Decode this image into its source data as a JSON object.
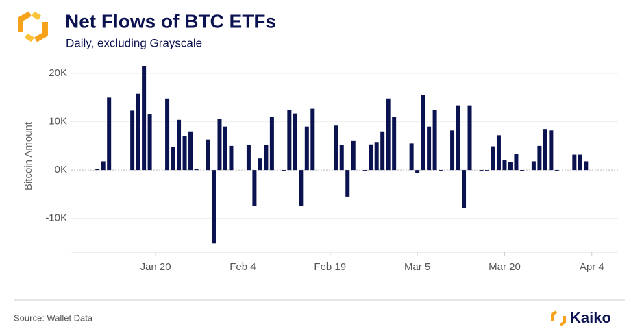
{
  "chart_data": {
    "type": "bar",
    "title": "Net Flows of BTC ETFs",
    "subtitle": "Daily, excluding Grayscale",
    "y_label": "Bitcoin Amount",
    "source": "Source: Wallet Data",
    "brand": "Kaiko",
    "categories": [
      null,
      null,
      null,
      null,
      null,
      null,
      null,
      null,
      null,
      null,
      null,
      null,
      null,
      null,
      "Jan 20",
      null,
      null,
      null,
      null,
      null,
      null,
      null,
      null,
      null,
      null,
      null,
      null,
      null,
      null,
      "Feb 4",
      null,
      null,
      null,
      null,
      null,
      null,
      null,
      null,
      null,
      null,
      null,
      null,
      null,
      null,
      "Feb 19",
      null,
      null,
      null,
      null,
      null,
      null,
      null,
      null,
      null,
      null,
      null,
      null,
      null,
      null,
      "Mar 5",
      null,
      null,
      null,
      null,
      null,
      null,
      null,
      null,
      null,
      null,
      null,
      null,
      null,
      null,
      "Mar 20",
      null,
      null,
      null,
      null,
      null,
      null,
      null,
      null,
      null,
      null,
      null,
      null,
      null,
      null,
      "Apr 4",
      null,
      null,
      null,
      null
    ],
    "values": [
      null,
      null,
      null,
      null,
      200,
      1800,
      15000,
      null,
      null,
      null,
      12300,
      15800,
      21500,
      11500,
      null,
      null,
      14800,
      4800,
      10400,
      7000,
      8000,
      200,
      null,
      6300,
      -15200,
      10600,
      9000,
      5000,
      null,
      null,
      5200,
      -7500,
      2400,
      5200,
      11000,
      null,
      -200,
      12500,
      11700,
      -7500,
      9000,
      12700,
      null,
      null,
      null,
      9200,
      5200,
      -5500,
      6000,
      null,
      -200,
      5300,
      5800,
      8000,
      14800,
      11000,
      null,
      null,
      5500,
      -600,
      15600,
      9000,
      12500,
      -200,
      null,
      8200,
      13400,
      -7800,
      13400,
      null,
      -200,
      -200,
      4900,
      7200,
      2000,
      1600,
      3400,
      -200,
      null,
      1800,
      5000,
      8500,
      8200,
      -200,
      null,
      null,
      3200,
      3200,
      1800,
      null,
      null,
      null,
      null,
      null
    ],
    "color": "#0b1250",
    "ylim": [
      -17000,
      22000
    ],
    "yticks": [
      {
        "value": -10000,
        "label": "-10K"
      },
      {
        "value": 0,
        "label": "0K"
      },
      {
        "value": 10000,
        "label": "10K"
      },
      {
        "value": 20000,
        "label": "20K"
      }
    ],
    "grid": true
  }
}
